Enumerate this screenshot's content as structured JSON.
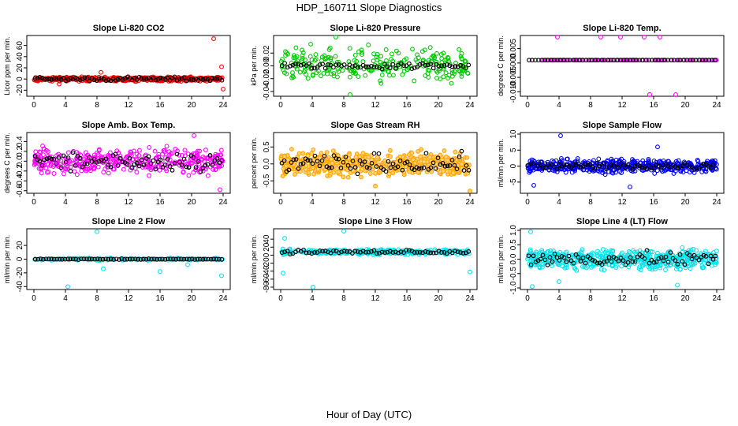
{
  "title": "HDP_160711  Slope Diagnostics",
  "xlabel": "Hour of Day (UTC)",
  "chart_data": [
    {
      "type": "scatter",
      "title": "Slope Li-820 CO2",
      "ylabel": "Licor ppm per min.",
      "ylim": [
        -28,
        75
      ],
      "yticks": [
        "-20",
        "0",
        "20",
        "40",
        "60"
      ],
      "ytickvals": [
        -20,
        0,
        20,
        40,
        60
      ],
      "xlim": [
        0,
        24
      ],
      "xticks": [
        0,
        4,
        8,
        12,
        16,
        20,
        24
      ],
      "color": "#ff0000",
      "fill": "",
      "centered_mean": 0,
      "spread": 3,
      "n": 420,
      "outliers": [
        [
          22.8,
          72
        ],
        [
          23.8,
          22
        ],
        [
          24.0,
          -18
        ],
        [
          8.5,
          12
        ],
        [
          3.2,
          -9
        ]
      ],
      "black_mean": 0,
      "black_spread": 3,
      "black_n": 80
    },
    {
      "type": "scatter",
      "title": "Slope Li-820 Pressure",
      "ylabel": "kPa per min.",
      "ylim": [
        -0.045,
        0.045
      ],
      "yticks": [
        "-0.04",
        "-0.02",
        "0.00",
        "0.02"
      ],
      "ytickvals": [
        -0.04,
        -0.02,
        0,
        0.02
      ],
      "xlim": [
        0,
        24
      ],
      "xticks": [
        0,
        4,
        8,
        12,
        16,
        20,
        24
      ],
      "color": "#00cc00",
      "fill": "",
      "centered_mean": 0,
      "spread": 0.022,
      "n": 260,
      "outliers": [
        [
          3.8,
          0.034
        ],
        [
          7.0,
          0.045
        ],
        [
          8.8,
          -0.045
        ]
      ],
      "black_mean": 0,
      "black_spread": 0.004,
      "black_n": 70
    },
    {
      "type": "scatter",
      "title": "Slope Li-820 Temp.",
      "ylabel": "degrees C per min.",
      "ylim": [
        -0.011,
        0.009
      ],
      "yticks": [
        "-0.010",
        "-0.005",
        "0.000",
        "0.005"
      ],
      "ytickvals": [
        -0.01,
        -0.005,
        0,
        0.005
      ],
      "xlim": [
        0,
        24
      ],
      "xticks": [
        0,
        4,
        8,
        12,
        16,
        20,
        24
      ],
      "color": "#ff00ff",
      "fill": "",
      "centered_mean": 0.001,
      "spread": 0,
      "n": 120,
      "outliers": [
        [
          3.8,
          0.009
        ],
        [
          9.3,
          0.009
        ],
        [
          11.8,
          0.009
        ],
        [
          14.8,
          0.009
        ],
        [
          16.8,
          0.009
        ],
        [
          15.5,
          -0.011
        ],
        [
          18.8,
          -0.011
        ]
      ],
      "black_mean": 0.001,
      "black_spread": 0,
      "black_n": 60
    },
    {
      "type": "scatter",
      "title": "Slope Amb. Box Temp.",
      "ylabel": "degrees C per min.",
      "ylim": [
        -0.62,
        0.55
      ],
      "yticks": [
        "-0.6",
        "-0.4",
        "-0.2",
        "0.0",
        "0.2",
        "0.4"
      ],
      "ytickvals": [
        -0.6,
        -0.4,
        -0.2,
        0,
        0.2,
        0.4
      ],
      "xlim": [
        0,
        24
      ],
      "xticks": [
        0,
        4,
        8,
        12,
        16,
        20,
        24
      ],
      "color": "#ff00ff",
      "fill": "",
      "centered_mean": 0,
      "spread": 0.2,
      "n": 380,
      "outliers": [
        [
          23.6,
          -0.58
        ],
        [
          20.3,
          0.52
        ]
      ],
      "black_mean": 0,
      "black_spread": 0.16,
      "black_n": 80
    },
    {
      "type": "scatter",
      "title": "Slope Gas Stream RH",
      "ylabel": "percent per min.",
      "ylim": [
        -0.82,
        0.88
      ],
      "yticks": [
        "-0.5",
        "0.0",
        "0.5"
      ],
      "ytickvals": [
        -0.5,
        0,
        0.5
      ],
      "xlim": [
        0,
        24
      ],
      "xticks": [
        0,
        4,
        8,
        12,
        16,
        20,
        24
      ],
      "color": "#ffa500",
      "fill": "#ffd27a",
      "centered_mean": 0,
      "spread": 0.28,
      "n": 520,
      "outliers": [
        [
          24.0,
          -0.8
        ],
        [
          12.0,
          -0.65
        ]
      ],
      "black_mean": 0,
      "black_spread": 0.24,
      "black_n": 80
    },
    {
      "type": "scatter",
      "title": "Slope Sample Flow",
      "ylabel": "ml/min per min.",
      "ylim": [
        -8,
        10
      ],
      "yticks": [
        "-5",
        "0",
        "5",
        "10"
      ],
      "ytickvals": [
        -5,
        0,
        5,
        10
      ],
      "xlim": [
        0,
        24
      ],
      "xticks": [
        0,
        4,
        8,
        12,
        16,
        20,
        24
      ],
      "color": "#0000ff",
      "fill": "",
      "centered_mean": 0,
      "spread": 1.7,
      "n": 460,
      "outliers": [
        [
          4.2,
          9.5
        ],
        [
          16.5,
          6
        ],
        [
          13.0,
          -6.5
        ],
        [
          0.8,
          -6
        ]
      ],
      "black_mean": 0,
      "black_spread": 1.0,
      "black_n": 80
    },
    {
      "type": "scatter",
      "title": "Slope Line 2 Flow",
      "ylabel": "ml/min per min.",
      "ylim": [
        -42,
        42
      ],
      "yticks": [
        "-40",
        "-20",
        "0",
        "20"
      ],
      "ytickvals": [
        -40,
        -20,
        0,
        20
      ],
      "xlim": [
        0,
        24
      ],
      "xticks": [
        0,
        4,
        8,
        12,
        16,
        20,
        24
      ],
      "color": "#00e5ee",
      "fill": "",
      "centered_mean": 0,
      "spread": 1.2,
      "n": 220,
      "outliers": [
        [
          8.0,
          40
        ],
        [
          4.3,
          -40
        ],
        [
          8.8,
          -14
        ],
        [
          16.0,
          -18
        ],
        [
          23.8,
          -24
        ],
        [
          19.5,
          -8
        ]
      ],
      "black_mean": 0,
      "black_spread": 0.6,
      "black_n": 70
    },
    {
      "type": "scatter",
      "title": "Slope Line 3 Flow",
      "ylabel": "ml/min per min.",
      "ylim": [
        -82,
        62
      ],
      "yticks": [
        "-80",
        "-60",
        "-40",
        "-20",
        "0",
        "20",
        "40"
      ],
      "ytickvals": [
        -80,
        -60,
        -40,
        -20,
        0,
        20,
        40
      ],
      "xlim": [
        0,
        24
      ],
      "xticks": [
        0,
        4,
        8,
        12,
        16,
        20,
        24
      ],
      "color": "#00e5ee",
      "fill": "",
      "centered_mean": 8,
      "spread": 5,
      "n": 300,
      "outliers": [
        [
          8.0,
          60
        ],
        [
          4.1,
          -80
        ],
        [
          0.3,
          -45
        ],
        [
          0.5,
          42
        ],
        [
          24.0,
          -42
        ]
      ],
      "black_mean": 8,
      "black_spread": 4,
      "black_n": 70
    },
    {
      "type": "scatter",
      "title": "Slope Line 4 (LT) Flow",
      "ylabel": "ml/min per min.",
      "ylim": [
        -1.0,
        1.0
      ],
      "yticks": [
        "-1.0",
        "-0.5",
        "0.0",
        "0.5",
        "1.0"
      ],
      "ytickvals": [
        -1,
        -0.5,
        0,
        0.5,
        1
      ],
      "xlim": [
        0,
        24
      ],
      "xticks": [
        0,
        4,
        8,
        12,
        16,
        20,
        24
      ],
      "color": "#00e5ee",
      "fill": "",
      "centered_mean": 0,
      "spread": 0.28,
      "n": 520,
      "outliers": [
        [
          0.4,
          0.95
        ],
        [
          0.6,
          -0.95
        ],
        [
          4.0,
          -0.78
        ],
        [
          19.0,
          -0.9
        ]
      ],
      "black_mean": 0,
      "black_spread": 0.2,
      "black_n": 80
    }
  ]
}
